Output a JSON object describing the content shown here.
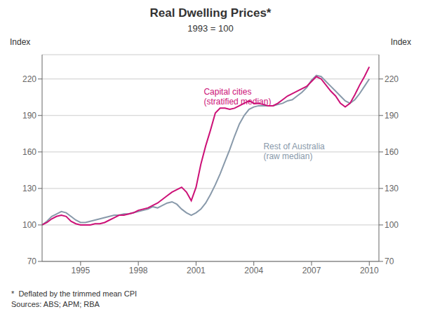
{
  "chart_data": {
    "type": "line",
    "title": "Real Dwelling Prices*",
    "subtitle": "1993 = 100",
    "ylabel": "Index",
    "y2label": "Index",
    "notes": [
      "*  Deflated by the trimmed mean CPI",
      "Sources: ABS; APM; RBA"
    ],
    "xlim": [
      1993.0,
      2010.5
    ],
    "xticks": [
      1995,
      1998,
      2001,
      2004,
      2007,
      2010
    ],
    "ylim": [
      70,
      240
    ],
    "yticks": [
      70,
      100,
      130,
      160,
      190,
      220
    ],
    "y2lim": [
      70,
      240
    ],
    "y2ticks": [
      70,
      100,
      130,
      160,
      190,
      220
    ],
    "grid": true,
    "x": [
      1993.0,
      1993.25,
      1993.5,
      1993.75,
      1994.0,
      1994.25,
      1994.5,
      1994.75,
      1995.0,
      1995.25,
      1995.5,
      1995.75,
      1996.0,
      1996.25,
      1996.5,
      1996.75,
      1997.0,
      1997.25,
      1997.5,
      1997.75,
      1998.0,
      1998.25,
      1998.5,
      1998.75,
      1999.0,
      1999.25,
      1999.5,
      1999.75,
      2000.0,
      2000.25,
      2000.5,
      2000.75,
      2001.0,
      2001.25,
      2001.5,
      2001.75,
      2002.0,
      2002.25,
      2002.5,
      2002.75,
      2003.0,
      2003.25,
      2003.5,
      2003.75,
      2004.0,
      2004.25,
      2004.5,
      2004.75,
      2005.0,
      2005.25,
      2005.5,
      2005.75,
      2006.0,
      2006.25,
      2006.5,
      2006.75,
      2007.0,
      2007.25,
      2007.5,
      2007.75,
      2008.0,
      2008.25,
      2008.5,
      2008.75,
      2009.0,
      2009.25,
      2009.5,
      2009.75,
      2010.0
    ],
    "series": [
      {
        "color": "#CC1177",
        "values": [
          100,
          102,
          105,
          107,
          108,
          107,
          103,
          101,
          100,
          100,
          100,
          101,
          101,
          102,
          104,
          106,
          108,
          108,
          109,
          110,
          112,
          113,
          114,
          116,
          118,
          121,
          124,
          127,
          129,
          131,
          127,
          120,
          131,
          150,
          165,
          178,
          192,
          196,
          196,
          195,
          196,
          198,
          200,
          202,
          200,
          200,
          199,
          198,
          198,
          200,
          203,
          206,
          208,
          210,
          212,
          214,
          218,
          222,
          220,
          215,
          210,
          206,
          200,
          197,
          200,
          207,
          215,
          222,
          230
        ]
      },
      {
        "color": "#8899AA",
        "values": [
          100,
          103,
          107,
          109,
          111,
          110,
          107,
          104,
          102,
          102,
          103,
          104,
          105,
          106,
          107,
          108,
          108,
          109,
          109,
          110,
          111,
          112,
          113,
          115,
          114,
          116,
          118,
          119,
          117,
          113,
          110,
          108,
          110,
          113,
          118,
          125,
          133,
          142,
          152,
          162,
          173,
          183,
          190,
          195,
          197,
          198,
          198,
          198,
          198,
          199,
          200,
          202,
          203,
          206,
          209,
          213,
          219,
          223,
          222,
          218,
          214,
          210,
          206,
          202,
          200,
          203,
          208,
          214,
          220
        ]
      }
    ],
    "annotations": [
      {
        "text": "Capital cities",
        "x": 2001.4,
        "y": 207,
        "color": "#CC1177"
      },
      {
        "text": "(stratified median)",
        "x": 2001.4,
        "y": 199,
        "color": "#CC1177"
      },
      {
        "text": "Rest of Australia",
        "x": 2004.5,
        "y": 162,
        "color": "#8899AA"
      },
      {
        "text": "(raw median)",
        "x": 2004.5,
        "y": 154,
        "color": "#8899AA"
      }
    ]
  }
}
